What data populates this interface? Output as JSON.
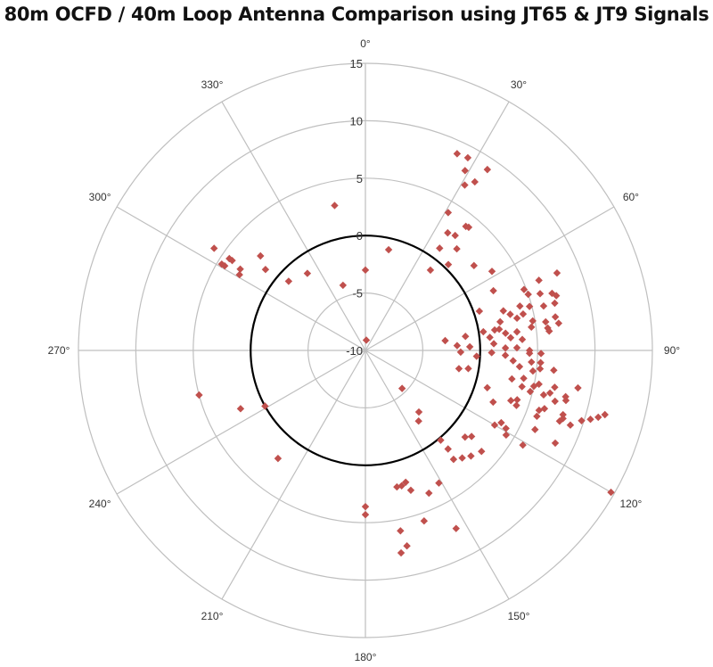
{
  "chart_data": {
    "type": "scatter",
    "coordinate_system": "polar",
    "title": "80m OCFD / 40m Loop Antenna Comparison using JT65 & JT9 Signals",
    "angle_direction": "clockwise",
    "angle_zero": "top",
    "angle_ticks": [
      "0°",
      "30°",
      "60°",
      "90°",
      "120°",
      "150°",
      "180°",
      "210°",
      "240°",
      "270°",
      "300°",
      "330°"
    ],
    "radial_range": [
      -10,
      15
    ],
    "radial_ticks": [
      "-10",
      "-5",
      "0",
      "5",
      "10",
      "15"
    ],
    "grid": true,
    "reference_circle_value": 0,
    "reference_circle_color": "#000000",
    "marker": "diamond",
    "marker_color": "#c0504d",
    "grid_color": "#bfbfbf",
    "points": [
      [
        25,
        8.9
      ],
      [
        28,
        9.0
      ],
      [
        29,
        7.9
      ],
      [
        34,
        9.0
      ],
      [
        31,
        6.8
      ],
      [
        33,
        7.5
      ],
      [
        31,
        4.0
      ],
      [
        39,
        3.9
      ],
      [
        40,
        4.0
      ],
      [
        35,
        2.5
      ],
      [
        38,
        2.7
      ],
      [
        36,
        1.0
      ],
      [
        42,
        1.9
      ],
      [
        39,
        -1.0
      ],
      [
        44,
        0.4
      ],
      [
        52,
        2.0
      ],
      [
        58,
        3.0
      ],
      [
        68,
        8.0
      ],
      [
        68,
        6.3
      ],
      [
        65,
        2.3
      ],
      [
        69,
        4.8
      ],
      [
        71,
        5.0
      ],
      [
        72,
        6.0
      ],
      [
        73,
        7.0
      ],
      [
        74,
        7.3
      ],
      [
        76,
        7.0
      ],
      [
        76,
        6.0
      ],
      [
        74,
        4.0
      ],
      [
        75,
        4.8
      ],
      [
        71,
        0.5
      ],
      [
        74,
        2.5
      ],
      [
        76,
        3.0
      ],
      [
        78,
        3.5
      ],
      [
        77,
        4.1
      ],
      [
        80,
        4.8
      ],
      [
        81,
        5.9
      ],
      [
        80,
        6.8
      ],
      [
        82,
        7.0
      ],
      [
        83,
        6.0
      ],
      [
        84,
        6.1
      ],
      [
        78,
        2.0
      ],
      [
        81,
        1.8
      ],
      [
        81,
        1.4
      ],
      [
        81,
        0.4
      ],
      [
        84,
        0.9
      ],
      [
        83,
        2.3
      ],
      [
        83,
        3.3
      ],
      [
        82,
        4.6
      ],
      [
        85,
        2.7
      ],
      [
        86,
        3.7
      ],
      [
        83,
        -3.0
      ],
      [
        82,
        -1.2
      ],
      [
        87,
        -2.0
      ],
      [
        88,
        -0.9
      ],
      [
        87,
        1.2
      ],
      [
        89,
        2.2
      ],
      [
        89,
        3.2
      ],
      [
        90,
        4.3
      ],
      [
        91,
        5.3
      ],
      [
        91,
        -1.7
      ],
      [
        93,
        -0.3
      ],
      [
        91,
        1.0
      ],
      [
        92,
        2.2
      ],
      [
        94,
        2.9
      ],
      [
        96,
        3.5
      ],
      [
        91,
        4.3
      ],
      [
        94,
        4.5
      ],
      [
        94,
        5.3
      ],
      [
        97,
        4.7
      ],
      [
        96,
        5.3
      ],
      [
        96,
        6.5
      ],
      [
        101,
        -1.7
      ],
      [
        100,
        -0.9
      ],
      [
        101,
        3.0
      ],
      [
        100,
        4.0
      ],
      [
        103,
        4.0
      ],
      [
        102,
        5.0
      ],
      [
        101,
        5.4
      ],
      [
        104,
        4.8
      ],
      [
        101,
        6.8
      ],
      [
        100,
        8.8
      ],
      [
        107,
        1.1
      ],
      [
        104,
        6.0
      ],
      [
        103,
        6.5
      ],
      [
        103,
        7.9
      ],
      [
        104,
        8.0
      ],
      [
        105,
        7.1
      ],
      [
        112,
        2.0
      ],
      [
        109,
        3.4
      ],
      [
        108,
        3.9
      ],
      [
        110,
        4.0
      ],
      [
        109,
        6.0
      ],
      [
        108,
        6.4
      ],
      [
        108,
        8.1
      ],
      [
        109,
        8.2
      ],
      [
        111,
        6.0
      ],
      [
        110,
        8.0
      ],
      [
        110,
        9.0
      ],
      [
        108,
        9.8
      ],
      [
        107,
        10.5
      ],
      [
        106,
        11.1
      ],
      [
        105,
        11.6
      ],
      [
        118,
        3.4
      ],
      [
        120,
        3.0
      ],
      [
        119,
        4.0
      ],
      [
        115,
        6.3
      ],
      [
        121,
        4.3
      ],
      [
        131,
        1.5
      ],
      [
        129,
        1.9
      ],
      [
        140,
        0.2
      ],
      [
        121,
        6.0
      ],
      [
        116,
        8.4
      ],
      [
        140,
        1.2
      ],
      [
        131,
        3.4
      ],
      [
        135,
        3.0
      ],
      [
        138,
        2.6
      ],
      [
        141,
        2.2
      ],
      [
        151,
        3.2
      ],
      [
        156,
        3.6
      ],
      [
        120,
        14.7
      ],
      [
        153,
        7.4
      ],
      [
        136,
        -5.4
      ],
      [
        139,
        -2.9
      ],
      [
        143,
        -2.3
      ],
      [
        167,
        2.2
      ],
      [
        165,
        2.2
      ],
      [
        163,
        2.0
      ],
      [
        162,
        2.8
      ],
      [
        180,
        3.6
      ],
      [
        180,
        4.3
      ],
      [
        161,
        5.7
      ],
      [
        169,
        6.0
      ],
      [
        168,
        7.4
      ],
      [
        170,
        7.9
      ],
      [
        304,
        5.9
      ],
      [
        301,
        4.6
      ],
      [
        301,
        4.3
      ],
      [
        304,
        4.3
      ],
      [
        304,
        4.0
      ],
      [
        303,
        3.0
      ],
      [
        301,
        2.8
      ],
      [
        312,
        2.3
      ],
      [
        309,
        1.2
      ],
      [
        312,
        -1.0
      ],
      [
        323,
        -1.6
      ],
      [
        348,
        2.9
      ],
      [
        341,
        -4.0
      ],
      [
        0,
        -3.0
      ],
      [
        13,
        -1.0
      ],
      [
        5,
        -9.1
      ],
      [
        255,
        5.0
      ],
      [
        245,
        2.0
      ],
      [
        241,
        0.0
      ],
      [
        219,
        2.1
      ]
    ]
  }
}
